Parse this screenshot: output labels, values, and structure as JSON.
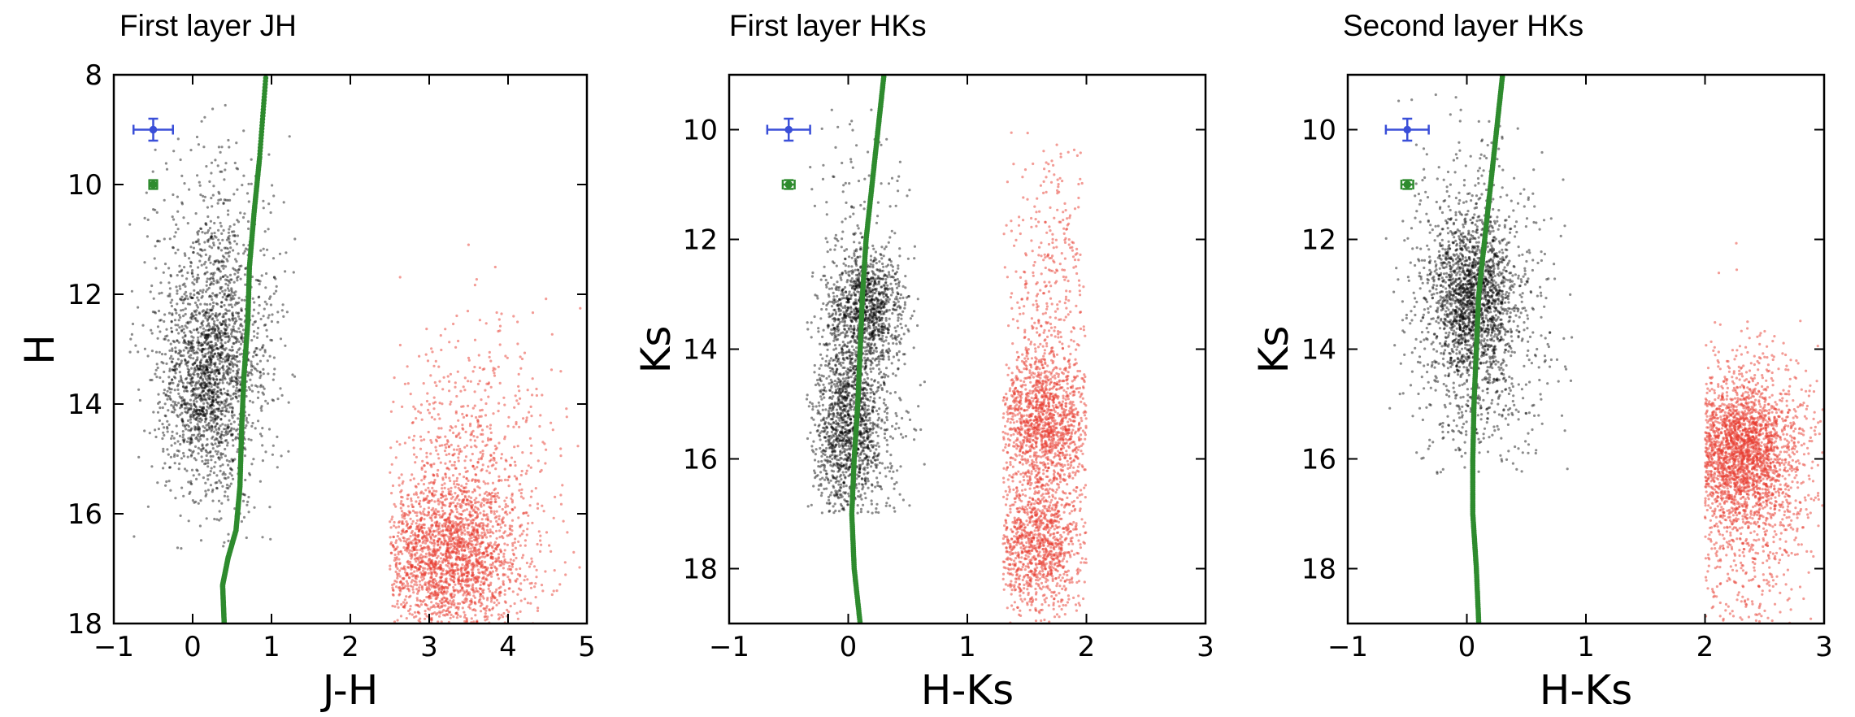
{
  "chart_data": [
    {
      "type": "scatter",
      "title": "First layer JH",
      "xlabel": "J-H",
      "ylabel": "H",
      "xlim": [
        -1,
        5
      ],
      "ylim": [
        18,
        8
      ],
      "y_inverted": true,
      "xticks": [
        "−1",
        "0",
        "1",
        "2",
        "3",
        "4",
        "5"
      ],
      "xtick_values": [
        -1,
        0,
        1,
        2,
        3,
        4,
        5
      ],
      "yticks": [
        "8",
        "10",
        "12",
        "14",
        "16",
        "18"
      ],
      "ytick_values": [
        8,
        10,
        12,
        14,
        16,
        18
      ],
      "grid": false,
      "clouds": [
        {
          "color": "#000000",
          "x_range": [
            -0.8,
            1.3
          ],
          "y_range": [
            8.5,
            16.7
          ],
          "count": 2300,
          "opacity": 0.45,
          "cores": [
            {
              "x": 0.2,
              "y": 13.6,
              "sx": 0.28,
              "sy": 0.9,
              "w": 0.45
            },
            {
              "x": 0.3,
              "y": 12.8,
              "sx": 0.4,
              "sy": 1.6,
              "w": 0.55
            }
          ]
        },
        {
          "color": "#e8392d",
          "x_range": [
            2.5,
            5.0
          ],
          "y_range": [
            11.0,
            18.0
          ],
          "count": 2600,
          "opacity": 0.5,
          "cores": [
            {
              "x": 3.2,
              "y": 16.8,
              "sx": 0.45,
              "sy": 0.7,
              "w": 0.7
            },
            {
              "x": 3.5,
              "y": 15.5,
              "sx": 0.55,
              "sy": 1.5,
              "w": 0.3
            }
          ]
        }
      ],
      "sequence": {
        "color": "#2e8b2e",
        "points": [
          [
            0.4,
            18.0
          ],
          [
            0.38,
            17.3
          ],
          [
            0.45,
            16.8
          ],
          [
            0.55,
            16.3
          ],
          [
            0.6,
            15.5
          ],
          [
            0.62,
            14.5
          ],
          [
            0.65,
            13.5
          ],
          [
            0.7,
            12.5
          ],
          [
            0.72,
            11.5
          ],
          [
            0.78,
            10.5
          ],
          [
            0.85,
            9.5
          ],
          [
            0.93,
            8.0
          ]
        ]
      },
      "error_bars": [
        {
          "color": "#3a4fd8",
          "x": -0.5,
          "y": 9.0,
          "xerr": 0.25,
          "yerr": 0.2
        },
        {
          "color": "#2e8b2e",
          "x": -0.5,
          "y": 10.0,
          "xerr": 0.05,
          "yerr": 0.08
        }
      ]
    },
    {
      "type": "scatter",
      "title": "First layer HKs",
      "xlabel": "H-Ks",
      "ylabel": "Ks",
      "xlim": [
        -1,
        3
      ],
      "ylim": [
        19,
        9
      ],
      "y_inverted": true,
      "xticks": [
        "−1",
        "0",
        "1",
        "2",
        "3"
      ],
      "xtick_values": [
        -1,
        0,
        1,
        2,
        3
      ],
      "yticks": [
        "10",
        "12",
        "14",
        "16",
        "18"
      ],
      "ytick_values": [
        10,
        12,
        14,
        16,
        18
      ],
      "grid": false,
      "clouds": [
        {
          "color": "#000000",
          "x_range": [
            -0.35,
            0.65
          ],
          "y_range": [
            9.5,
            17.0
          ],
          "count": 2600,
          "opacity": 0.45,
          "cores": [
            {
              "x": 0.15,
              "y": 13.3,
              "sx": 0.16,
              "sy": 0.5,
              "w": 0.35
            },
            {
              "x": 0.0,
              "y": 15.5,
              "sx": 0.15,
              "sy": 0.8,
              "w": 0.45
            },
            {
              "x": 0.1,
              "y": 14.0,
              "sx": 0.2,
              "sy": 2.0,
              "w": 0.2
            }
          ]
        },
        {
          "color": "#e8392d",
          "x_range": [
            1.3,
            2.0
          ],
          "y_range": [
            10.0,
            19.0
          ],
          "count": 2700,
          "opacity": 0.5,
          "cores": [
            {
              "x": 1.65,
              "y": 15.3,
              "sx": 0.2,
              "sy": 0.6,
              "w": 0.45
            },
            {
              "x": 1.6,
              "y": 17.5,
              "sx": 0.2,
              "sy": 0.7,
              "w": 0.4
            },
            {
              "x": 1.7,
              "y": 13.0,
              "sx": 0.2,
              "sy": 1.5,
              "w": 0.15
            }
          ]
        }
      ],
      "sequence": {
        "color": "#2e8b2e",
        "points": [
          [
            0.1,
            19.0
          ],
          [
            0.05,
            18.0
          ],
          [
            0.03,
            17.0
          ],
          [
            0.05,
            16.0
          ],
          [
            0.08,
            15.0
          ],
          [
            0.1,
            14.0
          ],
          [
            0.12,
            13.0
          ],
          [
            0.15,
            12.0
          ],
          [
            0.2,
            11.0
          ],
          [
            0.25,
            10.0
          ],
          [
            0.3,
            9.0
          ]
        ]
      },
      "error_bars": [
        {
          "color": "#3a4fd8",
          "x": -0.5,
          "y": 10.0,
          "xerr": 0.18,
          "yerr": 0.2
        },
        {
          "color": "#2e8b2e",
          "x": -0.5,
          "y": 11.0,
          "xerr": 0.05,
          "yerr": 0.08
        }
      ]
    },
    {
      "type": "scatter",
      "title": "Second layer HKs",
      "xlabel": "H-Ks",
      "ylabel": "Ks",
      "xlim": [
        -1,
        3
      ],
      "ylim": [
        19,
        9
      ],
      "y_inverted": true,
      "xticks": [
        "−1",
        "0",
        "1",
        "2",
        "3"
      ],
      "xtick_values": [
        -1,
        0,
        1,
        2,
        3
      ],
      "yticks": [
        "10",
        "12",
        "14",
        "16",
        "18"
      ],
      "ytick_values": [
        10,
        12,
        14,
        16,
        18
      ],
      "grid": false,
      "clouds": [
        {
          "color": "#000000",
          "x_range": [
            -0.7,
            1.0
          ],
          "y_range": [
            9.0,
            16.3
          ],
          "count": 2400,
          "opacity": 0.45,
          "cores": [
            {
              "x": 0.05,
              "y": 13.1,
              "sx": 0.18,
              "sy": 0.7,
              "w": 0.55
            },
            {
              "x": 0.1,
              "y": 13.5,
              "sx": 0.3,
              "sy": 1.6,
              "w": 0.45
            }
          ]
        },
        {
          "color": "#e8392d",
          "x_range": [
            2.0,
            3.0
          ],
          "y_range": [
            11.0,
            19.0
          ],
          "count": 2700,
          "opacity": 0.5,
          "cores": [
            {
              "x": 2.3,
              "y": 15.8,
              "sx": 0.25,
              "sy": 0.6,
              "w": 0.6
            },
            {
              "x": 2.3,
              "y": 16.5,
              "sx": 0.3,
              "sy": 1.3,
              "w": 0.4
            }
          ]
        }
      ],
      "sequence": {
        "color": "#2e8b2e",
        "points": [
          [
            0.1,
            19.0
          ],
          [
            0.08,
            18.0
          ],
          [
            0.05,
            17.0
          ],
          [
            0.05,
            16.0
          ],
          [
            0.06,
            15.0
          ],
          [
            0.08,
            14.0
          ],
          [
            0.1,
            13.0
          ],
          [
            0.15,
            12.0
          ],
          [
            0.2,
            11.0
          ],
          [
            0.25,
            10.0
          ],
          [
            0.3,
            9.0
          ]
        ]
      },
      "error_bars": [
        {
          "color": "#3a4fd8",
          "x": -0.5,
          "y": 10.0,
          "xerr": 0.18,
          "yerr": 0.2
        },
        {
          "color": "#2e8b2e",
          "x": -0.5,
          "y": 11.0,
          "xerr": 0.05,
          "yerr": 0.08
        }
      ]
    }
  ]
}
